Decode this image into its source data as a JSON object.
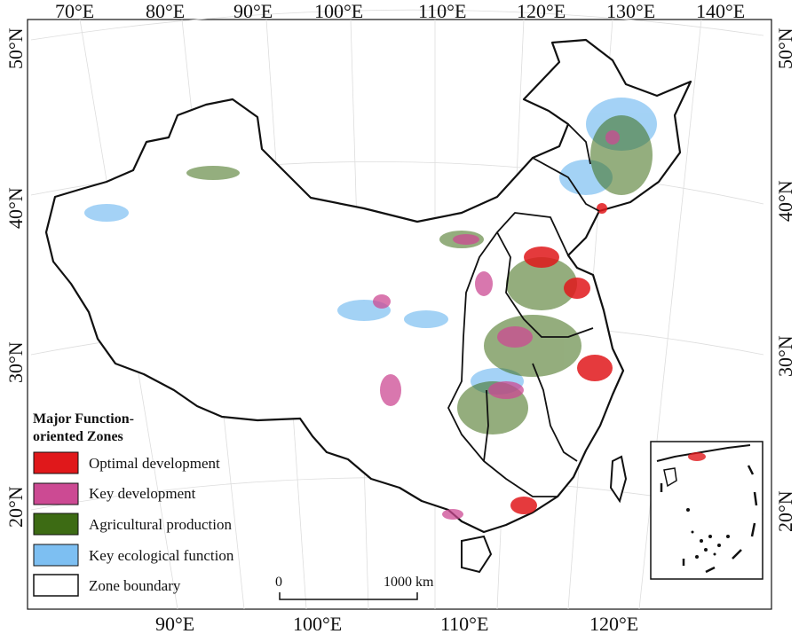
{
  "map": {
    "top_lon_labels": [
      "70°E",
      "80°E",
      "90°E",
      "100°E",
      "110°E",
      "120°E",
      "130°E",
      "140°E"
    ],
    "bottom_lon_labels": [
      "90°E",
      "100°E",
      "110°E",
      "120°E"
    ],
    "left_lat_labels": [
      "50°N",
      "40°N",
      "30°N",
      "20°N"
    ],
    "right_lat_labels": [
      "50°N",
      "40°N",
      "30°N",
      "20°N"
    ]
  },
  "legend": {
    "title_line1": "Major Function-",
    "title_line2": "oriented Zones",
    "items": [
      {
        "label": "Optimal development",
        "color": "#e0181b"
      },
      {
        "label": "Key development",
        "color": "#cc4a93"
      },
      {
        "label": "Agricultural production",
        "color": "#3d6b14"
      },
      {
        "label": "Key ecological function",
        "color": "#7dbff2"
      },
      {
        "label": "Zone boundary",
        "color": "#ffffff"
      }
    ]
  },
  "scale_bar": {
    "start_label": "0",
    "end_label": "1000 km"
  }
}
